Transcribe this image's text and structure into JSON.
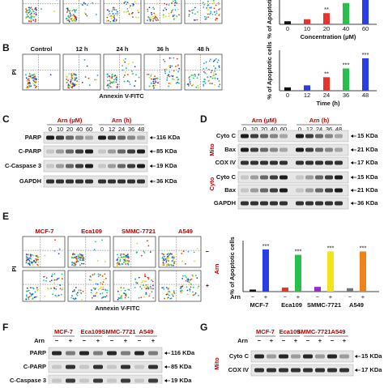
{
  "flow_b": {
    "panel": "B",
    "conditions": [
      "Control",
      "12 h",
      "24 h",
      "36 h",
      "48 h"
    ],
    "y_label": "PI",
    "x_label": "Annexin V-FITC"
  },
  "chart_a": {
    "type": "bar",
    "y_label": "% of Apoptotic cells",
    "x_label": "Concentration (μM)",
    "categories": [
      "0",
      "10",
      "20",
      "40",
      "60"
    ],
    "values": [
      3,
      5,
      11,
      21,
      30
    ],
    "colors": [
      "#111111",
      "#e8322b",
      "#e8322b",
      "#27c04a",
      "#2a3ee8"
    ],
    "annotations": [
      null,
      null,
      "**",
      "***",
      null
    ],
    "ylim": [
      0,
      32
    ]
  },
  "chart_b": {
    "type": "bar",
    "y_label": "% of Apoptotic cells",
    "x_label": "Time (h)",
    "categories": [
      "0",
      "12",
      "24",
      "36",
      "48"
    ],
    "values": [
      5,
      8,
      20,
      33,
      48
    ],
    "colors": [
      "#111111",
      "#2a3ee8",
      "#e8322b",
      "#27c04a",
      "#2a3ee8"
    ],
    "annotations": [
      null,
      null,
      "**",
      "***",
      "***"
    ],
    "ylim": [
      0,
      60
    ]
  },
  "blot_c": {
    "panel": "C",
    "groups": [
      {
        "label": "Arn (μM)",
        "lanes": [
          "0",
          "10",
          "20",
          "40",
          "60"
        ]
      },
      {
        "label": "Arn (h)",
        "lanes": [
          "0",
          "12",
          "24",
          "36",
          "48"
        ]
      }
    ],
    "rows": [
      {
        "name": "PARP",
        "size": "116 KDa"
      },
      {
        "name": "C-PARP",
        "size": "85 KDa"
      },
      {
        "name": "C-Caspase 3",
        "size": "19 KDa"
      },
      {
        "name": "GAPDH",
        "size": "36 KDa"
      }
    ]
  },
  "blot_d": {
    "panel": "D",
    "groups": [
      {
        "label": "Arn (μM)",
        "lanes": [
          "0",
          "10",
          "20",
          "40",
          "60"
        ]
      },
      {
        "label": "Arn (h)",
        "lanes": [
          "0",
          "12",
          "24",
          "36",
          "48"
        ]
      }
    ],
    "sections": [
      {
        "label": "Mito",
        "rows": [
          {
            "name": "Cyto C",
            "size": "15 KDa"
          },
          {
            "name": "Bax",
            "size": "21 KDa"
          },
          {
            "name": "COX IV",
            "size": "17 KDa"
          }
        ]
      },
      {
        "label": "Cyto",
        "rows": [
          {
            "name": "Cyto C",
            "size": "15 KDa"
          },
          {
            "name": "Bax",
            "size": "21 KDa"
          }
        ]
      }
    ],
    "loading": {
      "name": "GAPDH",
      "size": "36 KDa"
    }
  },
  "flow_e": {
    "panel": "E",
    "cell_lines": [
      "MCF-7",
      "Eca109",
      "SMMC-7721",
      "A549"
    ],
    "treatment_label": "Arn",
    "treatments": [
      "−",
      "+"
    ],
    "y_label": "PI",
    "x_label": "Annexin V-FITC"
  },
  "chart_e": {
    "type": "bar",
    "y_label": "% of Apoptotic cells",
    "treatment_label": "Arn",
    "treatments": [
      "−",
      "+"
    ],
    "cell_lines": [
      "MCF-7",
      "Eca109",
      "SMMC-7721",
      "A549"
    ],
    "values": [
      3,
      62,
      6,
      54,
      7,
      59,
      5,
      59
    ],
    "colors": [
      "#111111",
      "#2a3ee8",
      "#e8322b",
      "#27c04a",
      "#9b2bd0",
      "#f2e21a",
      "#777777",
      "#f0821e"
    ],
    "annotations": [
      null,
      "***",
      null,
      "***",
      null,
      "***",
      null,
      "***"
    ],
    "ylim": [
      0,
      75
    ]
  },
  "blot_f": {
    "panel": "F",
    "cell_lines": [
      "MCF-7",
      "Eca109",
      "SMMC-7721",
      "A549"
    ],
    "treatment_label": "Arn",
    "treatments": [
      "−",
      "+"
    ],
    "rows": [
      {
        "name": "PARP",
        "size": "116 KDa"
      },
      {
        "name": "C-PARP",
        "size": "85 KDa"
      },
      {
        "name": "C-Caspase 3",
        "size": "19 KDa"
      }
    ]
  },
  "blot_g": {
    "panel": "G",
    "cell_lines": [
      "MCF-7",
      "Eca109",
      "SMMC-7721",
      "A549"
    ],
    "treatment_label": "Arn",
    "treatments": [
      "−",
      "+"
    ],
    "sections": [
      {
        "label": "Mito",
        "rows": [
          {
            "name": "Cyto C",
            "size": "15 KDa"
          },
          {
            "name": "COX IV",
            "size": "17 KDa"
          }
        ]
      }
    ]
  }
}
